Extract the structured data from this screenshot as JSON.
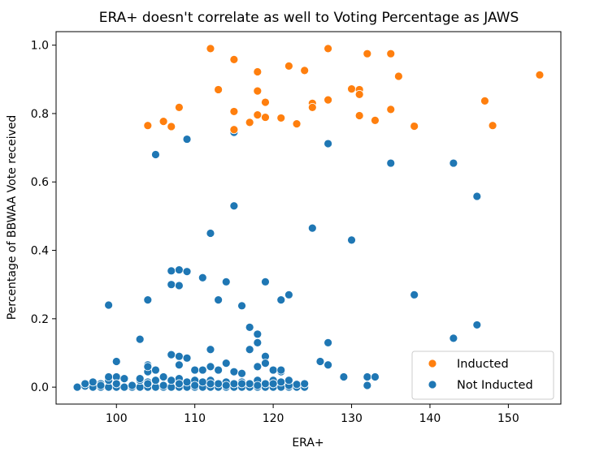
{
  "chart_data": {
    "type": "scatter",
    "title": "ERA+ doesn't correlate as well to Voting Percentage as JAWS",
    "xlabel": "ERA+",
    "ylabel": "Percentage of BBWAA Vote received",
    "xlim": [
      92.3,
      156.7
    ],
    "ylim": [
      -0.0495,
      1.0395
    ],
    "xticks": [
      100,
      110,
      120,
      130,
      140,
      150
    ],
    "yticks": [
      0.0,
      0.2,
      0.4,
      0.6,
      0.8,
      1.0
    ],
    "xtick_labels": [
      "100",
      "110",
      "120",
      "130",
      "140",
      "150"
    ],
    "ytick_labels": [
      "0.0",
      "0.2",
      "0.4",
      "0.6",
      "0.8",
      "1.0"
    ],
    "grid": false,
    "legend": {
      "placement": "lower-right",
      "entries": [
        "Inducted",
        "Not Inducted"
      ]
    },
    "colors": {
      "Inducted": "#ff7f0e",
      "Not Inducted": "#1f77b4"
    },
    "series": [
      {
        "name": "Not Inducted",
        "x": [
          95,
          96,
          97,
          97,
          98,
          98,
          99,
          99,
          100,
          100,
          101,
          101,
          102,
          103,
          103,
          104,
          104,
          104,
          105,
          105,
          106,
          106,
          107,
          107,
          108,
          108,
          109,
          109,
          110,
          110,
          111,
          111,
          112,
          112,
          113,
          113,
          114,
          114,
          115,
          115,
          116,
          116,
          117,
          117,
          118,
          118,
          119,
          119,
          120,
          120,
          121,
          121,
          122,
          122,
          123,
          123,
          124,
          124,
          96,
          98,
          100,
          102,
          104,
          106,
          108,
          110,
          112,
          114,
          116,
          118,
          120,
          122,
          124,
          99,
          100,
          101,
          103,
          104,
          104,
          105,
          106,
          107,
          108,
          108,
          109,
          110,
          111,
          112,
          112,
          113,
          114,
          115,
          116,
          117,
          117,
          118,
          118,
          119,
          119,
          120,
          121,
          121,
          122,
          126,
          127,
          127,
          129,
          132,
          133,
          105,
          109,
          112,
          115,
          115,
          127,
          99,
          103,
          104,
          107,
          107,
          108,
          108,
          109,
          111,
          113,
          114,
          116,
          118,
          119,
          121,
          122,
          125,
          130,
          135,
          138,
          143,
          143,
          146,
          146,
          132
        ],
        "y": [
          0.0,
          0.003,
          0.0,
          0.015,
          0.0,
          0.01,
          0.0,
          0.02,
          0.0,
          0.03,
          0.0,
          0.025,
          0.0,
          0.0,
          0.02,
          0.0,
          0.015,
          0.045,
          0.0,
          0.02,
          0.0,
          0.03,
          0.0,
          0.02,
          0.0,
          0.025,
          0.0,
          0.015,
          0.0,
          0.02,
          0.0,
          0.015,
          0.0,
          0.02,
          0.0,
          0.01,
          0.0,
          0.015,
          0.0,
          0.01,
          0.0,
          0.015,
          0.0,
          0.01,
          0.0,
          0.02,
          0.0,
          0.01,
          0.0,
          0.02,
          0.0,
          0.015,
          0.0,
          0.01,
          0.0,
          0.008,
          0.0,
          0.01,
          0.01,
          0.005,
          0.01,
          0.005,
          0.01,
          0.005,
          0.01,
          0.005,
          0.01,
          0.005,
          0.01,
          0.005,
          0.01,
          0.005,
          0.01,
          0.03,
          0.075,
          0.025,
          0.025,
          0.065,
          0.06,
          0.05,
          0.03,
          0.095,
          0.09,
          0.065,
          0.085,
          0.05,
          0.05,
          0.06,
          0.11,
          0.05,
          0.07,
          0.045,
          0.04,
          0.11,
          0.175,
          0.13,
          0.06,
          0.09,
          0.07,
          0.05,
          0.045,
          0.05,
          0.02,
          0.075,
          0.065,
          0.13,
          0.03,
          0.03,
          0.03,
          0.68,
          0.725,
          0.45,
          0.745,
          0.53,
          0.712,
          0.24,
          0.14,
          0.255,
          0.34,
          0.3,
          0.343,
          0.297,
          0.338,
          0.32,
          0.255,
          0.308,
          0.238,
          0.155,
          0.308,
          0.255,
          0.27,
          0.465,
          0.43,
          0.655,
          0.27,
          0.655,
          0.143,
          0.558,
          0.182,
          0.005
        ]
      },
      {
        "name": "Inducted",
        "x": [
          104,
          106,
          107,
          108,
          112,
          113,
          115,
          115,
          115,
          117,
          118,
          118,
          118,
          119,
          119,
          121,
          122,
          123,
          124,
          125,
          125,
          127,
          127,
          130,
          131,
          131,
          131,
          132,
          133,
          135,
          135,
          136,
          138,
          147,
          148,
          154
        ],
        "y": [
          0.765,
          0.777,
          0.762,
          0.818,
          0.99,
          0.87,
          0.958,
          0.806,
          0.753,
          0.774,
          0.922,
          0.866,
          0.796,
          0.833,
          0.789,
          0.787,
          0.939,
          0.77,
          0.926,
          0.83,
          0.818,
          0.99,
          0.84,
          0.872,
          0.87,
          0.856,
          0.794,
          0.975,
          0.78,
          0.975,
          0.812,
          0.909,
          0.763,
          0.837,
          0.765,
          0.913
        ]
      }
    ]
  }
}
